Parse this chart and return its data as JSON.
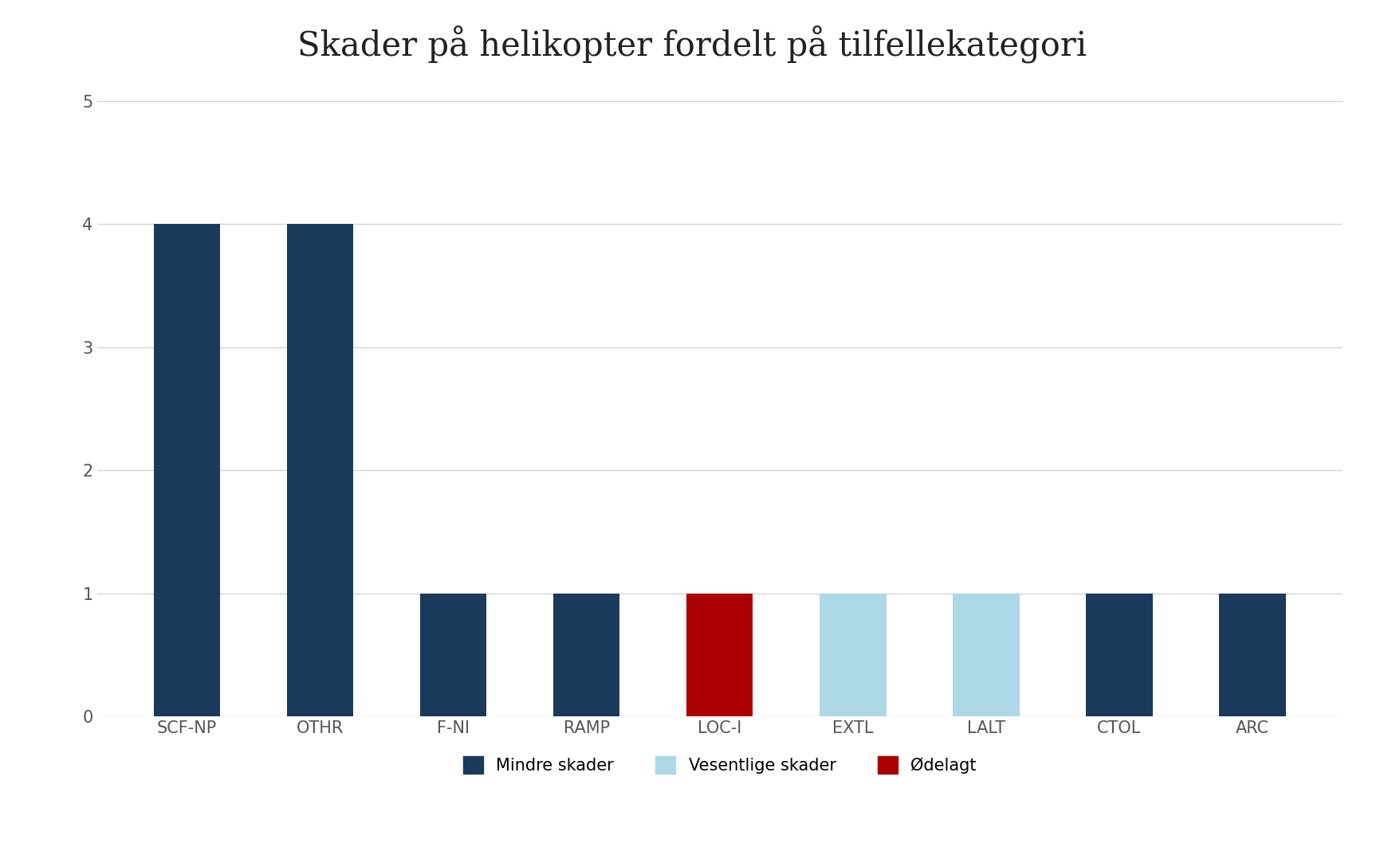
{
  "title": "Skader på helikopter fordelt på tilfellekategori",
  "categories": [
    "SCF-NP",
    "OTHR",
    "F-NI",
    "RAMP",
    "LOC-I",
    "EXTL",
    "LALT",
    "CTOL",
    "ARC"
  ],
  "bar_values": [
    4,
    4,
    1,
    1,
    1,
    1,
    1,
    1,
    1
  ],
  "bar_colors": [
    "#1a3a5c",
    "#1a3a5c",
    "#1a3a5c",
    "#1a3a5c",
    "#aa0000",
    "#add8e6",
    "#add8e6",
    "#1a3a5c",
    "#1a3a5c"
  ],
  "legend_items": [
    {
      "name": "Mindre skader",
      "color": "#1a3a5c"
    },
    {
      "name": "Vesentlige skader",
      "color": "#add8e6"
    },
    {
      "name": "Ødelagt",
      "color": "#aa0000"
    }
  ],
  "ylim": [
    0,
    5
  ],
  "yticks": [
    0,
    1,
    2,
    3,
    4,
    5
  ],
  "background_color": "#ffffff",
  "grid_color": "#d3d3d3",
  "title_fontsize": 30,
  "tick_fontsize": 15,
  "legend_fontsize": 15,
  "bar_width": 0.5
}
